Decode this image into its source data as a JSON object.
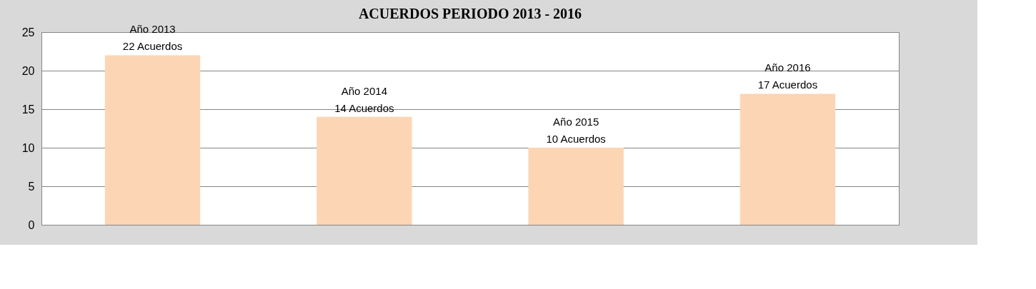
{
  "chart_data": {
    "type": "bar",
    "title": "ACUERDOS PERIODO 2013 - 2016",
    "categories": [
      null,
      null,
      null,
      null
    ],
    "values": [
      22,
      14,
      10,
      17
    ],
    "color": "#fcd5b4",
    "value_labels": [
      "Año 2013\n22 Acuerdos",
      "Año 2014\n14 Acuerdos",
      "Año 2015\n10 Acuerdos",
      "Año 2016\n17 Acuerdos"
    ],
    "ylim": [
      0,
      25
    ],
    "yticks": [
      0,
      5,
      10,
      15,
      20,
      25
    ],
    "grid": "y",
    "tick_labels": "y"
  }
}
